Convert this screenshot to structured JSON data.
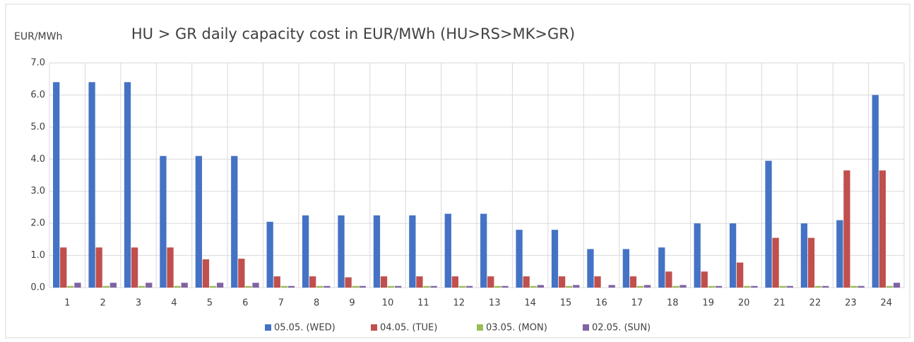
{
  "chart_data": {
    "type": "bar",
    "title": "HU > GR daily capacity cost in EUR/MWh (HU>RS>MK>GR)",
    "y_label": "EUR/MWh",
    "categories": [
      "1",
      "2",
      "3",
      "4",
      "5",
      "6",
      "7",
      "8",
      "9",
      "10",
      "11",
      "12",
      "13",
      "14",
      "15",
      "16",
      "17",
      "18",
      "19",
      "20",
      "21",
      "22",
      "23",
      "24"
    ],
    "series": [
      {
        "name": "05.05. (WED)",
        "color": "#4472c4",
        "values": [
          6.4,
          6.4,
          6.4,
          4.1,
          4.1,
          4.1,
          2.05,
          2.25,
          2.25,
          2.25,
          2.25,
          2.3,
          2.3,
          1.8,
          1.8,
          1.2,
          1.2,
          1.25,
          2.0,
          2.0,
          3.95,
          2.0,
          2.1,
          6.0
        ]
      },
      {
        "name": "04.05. (TUE)",
        "color": "#c0504d",
        "values": [
          1.25,
          1.25,
          1.25,
          1.25,
          0.88,
          0.9,
          0.35,
          0.35,
          0.32,
          0.35,
          0.35,
          0.35,
          0.35,
          0.35,
          0.35,
          0.35,
          0.35,
          0.5,
          0.5,
          0.78,
          1.55,
          1.55,
          3.65,
          3.65
        ]
      },
      {
        "name": "03.05. (MON)",
        "color": "#9bbb59",
        "values": [
          0.05,
          0.05,
          0.05,
          0.05,
          0.05,
          0.05,
          0.05,
          0.05,
          0.05,
          0.05,
          0.05,
          0.05,
          0.05,
          0.05,
          0.05,
          0.0,
          0.05,
          0.05,
          0.05,
          0.05,
          0.05,
          0.05,
          0.05,
          0.05
        ]
      },
      {
        "name": "02.05. (SUN)",
        "color": "#8064a2",
        "values": [
          0.15,
          0.15,
          0.15,
          0.15,
          0.15,
          0.15,
          0.05,
          0.05,
          0.05,
          0.05,
          0.05,
          0.05,
          0.05,
          0.08,
          0.08,
          0.08,
          0.08,
          0.08,
          0.05,
          0.05,
          0.05,
          0.05,
          0.05,
          0.15
        ]
      }
    ],
    "ylim": [
      0,
      7
    ],
    "yticks": [
      {
        "value": 0,
        "label": "0.0"
      },
      {
        "value": 1,
        "label": "1.0"
      },
      {
        "value": 2,
        "label": "2.0"
      },
      {
        "value": 3,
        "label": "3.0"
      },
      {
        "value": 4,
        "label": "4.0"
      },
      {
        "value": 5,
        "label": "5.0"
      },
      {
        "value": 6,
        "label": "6.0"
      },
      {
        "value": 7,
        "label": "7.0"
      }
    ],
    "grid": true,
    "legend": "bottom"
  }
}
